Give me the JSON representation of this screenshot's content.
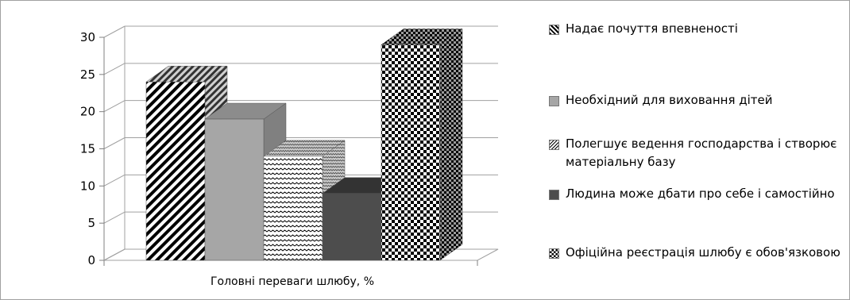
{
  "chart_data": {
    "type": "bar",
    "style": "3d-clustered-column",
    "xlabel": "Головні переваги шлюбу, %",
    "ylim": [
      0,
      30
    ],
    "yticks": [
      "0",
      "5",
      "10",
      "15",
      "20",
      "25",
      "30"
    ],
    "gridlines": true,
    "legend_position": "right",
    "series": [
      {
        "name": "Надає почуття впевненості",
        "values": [
          24
        ],
        "color": "#ffffff",
        "pattern": "diagonal-stripes"
      },
      {
        "name": "Необхідний для виховання дітей",
        "values": [
          19
        ],
        "color": "#a6a6a6",
        "pattern": "solid-gray"
      },
      {
        "name": "Полегшує ведення господарства і створює матеріальну базу",
        "values": [
          14
        ],
        "color": "#ffffff",
        "pattern": "zigzag"
      },
      {
        "name": "Людина може дбати про себе і самостійно",
        "values": [
          9
        ],
        "color": "#4d4d4d",
        "pattern": "solid-dark"
      },
      {
        "name": "Офіційна реєстрація шлюбу є обов'язковою",
        "values": [
          29
        ],
        "color": "#ffffff",
        "pattern": "checkerboard"
      }
    ]
  }
}
